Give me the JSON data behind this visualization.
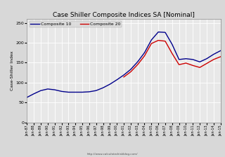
{
  "title": "Case Shiller Composite Indices SA [Nominal]",
  "ylabel": "Case-Shiller Index",
  "xlabel_url": "http://www.calculatedriskblog.com/",
  "legend": [
    "Composite 10",
    "Composite 20"
  ],
  "colors": [
    "#00008B",
    "#CC0000"
  ],
  "ylim": [
    0,
    260
  ],
  "yticks": [
    0,
    50,
    100,
    150,
    200,
    250
  ],
  "fig_background": "#D8D8D8",
  "plot_background": "#E8E8E8",
  "grid_color": "#FFFFFF",
  "xlim_start": 1987,
  "xlim_end": 2015,
  "years": [
    1987,
    1988,
    1989,
    1990,
    1991,
    1992,
    1993,
    1994,
    1995,
    1996,
    1997,
    1998,
    1999,
    2000,
    2001,
    2002,
    2003,
    2004,
    2005,
    2006,
    2007,
    2008,
    2009,
    2010,
    2011,
    2012,
    2013,
    2014,
    2015
  ],
  "comp10": [
    63,
    72,
    80,
    84,
    82,
    78,
    76,
    76,
    76,
    77,
    80,
    87,
    96,
    107,
    119,
    133,
    152,
    175,
    207,
    227,
    226,
    196,
    158,
    160,
    158,
    152,
    160,
    171,
    180
  ],
  "comp20": [
    null,
    null,
    null,
    null,
    null,
    null,
    null,
    null,
    null,
    null,
    null,
    null,
    null,
    null,
    114,
    127,
    145,
    167,
    198,
    206,
    204,
    173,
    145,
    149,
    143,
    138,
    148,
    158,
    165
  ]
}
